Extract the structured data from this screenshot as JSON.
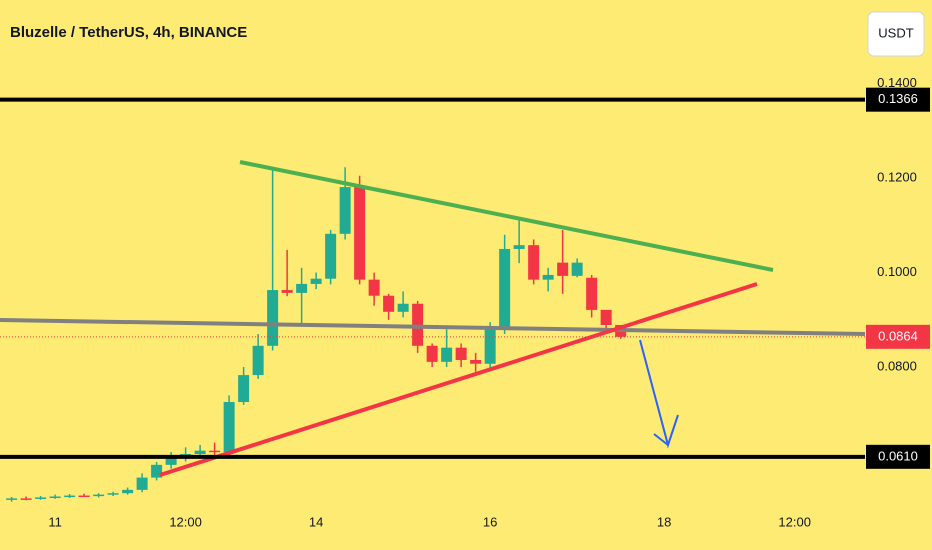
{
  "chart_data": {
    "type": "candlestick",
    "title": "Bluzelle / TetherUS, 4h, BINANCE",
    "currency": "USDT",
    "x": [
      -12,
      -8,
      -4,
      0,
      4,
      8,
      12,
      16,
      20,
      24,
      28,
      32,
      36,
      40,
      44,
      48,
      52,
      56,
      60,
      64,
      68,
      72,
      76,
      80,
      84,
      88,
      92,
      96,
      100,
      104,
      108,
      112,
      116,
      120,
      124,
      128,
      132,
      136,
      140,
      144,
      148,
      152,
      156
    ],
    "open": [
      0.052,
      0.0522,
      0.0521,
      0.0524,
      0.0526,
      0.0528,
      0.0527,
      0.053,
      0.0533,
      0.054,
      0.0566,
      0.0593,
      0.0608,
      0.0616,
      0.0623,
      0.062,
      0.0726,
      0.0783,
      0.0845,
      0.0963,
      0.0957,
      0.0976,
      0.0987,
      0.1082,
      0.1181,
      0.0985,
      0.0951,
      0.0917,
      0.0934,
      0.0845,
      0.0811,
      0.0841,
      0.0815,
      0.0807,
      0.0883,
      0.105,
      0.1058,
      0.0985,
      0.1021,
      0.0993,
      0.0989,
      0.0921,
      0.0889
    ],
    "high": [
      0.0525,
      0.0526,
      0.0527,
      0.053,
      0.0531,
      0.0532,
      0.0533,
      0.0536,
      0.0545,
      0.0575,
      0.0599,
      0.062,
      0.063,
      0.0635,
      0.064,
      0.074,
      0.08,
      0.087,
      0.1217,
      0.1048,
      0.101,
      0.1,
      0.109,
      0.1223,
      0.1205,
      0.1,
      0.0955,
      0.096,
      0.094,
      0.085,
      0.088,
      0.085,
      0.083,
      0.0895,
      0.108,
      0.1117,
      0.107,
      0.101,
      0.109,
      0.103,
      0.0995,
      0.0921,
      0.088
    ],
    "low": [
      0.0515,
      0.0518,
      0.0519,
      0.0521,
      0.0523,
      0.0525,
      0.0524,
      0.0527,
      0.053,
      0.0535,
      0.056,
      0.0585,
      0.06,
      0.0608,
      0.061,
      0.061,
      0.072,
      0.0775,
      0.0835,
      0.095,
      0.0889,
      0.0965,
      0.0975,
      0.107,
      0.0975,
      0.093,
      0.09,
      0.0905,
      0.083,
      0.08,
      0.08,
      0.08,
      0.079,
      0.0795,
      0.087,
      0.102,
      0.0975,
      0.096,
      0.0955,
      0.099,
      0.0905,
      0.088,
      0.086
    ],
    "close": [
      0.0522,
      0.0521,
      0.0524,
      0.0526,
      0.0528,
      0.0527,
      0.053,
      0.0533,
      0.054,
      0.0566,
      0.0593,
      0.0608,
      0.0616,
      0.0623,
      0.062,
      0.0726,
      0.0783,
      0.0845,
      0.0963,
      0.0957,
      0.0976,
      0.0987,
      0.1082,
      0.1181,
      0.0985,
      0.0951,
      0.0917,
      0.0934,
      0.0845,
      0.0811,
      0.0841,
      0.0815,
      0.0807,
      0.0883,
      0.105,
      0.1058,
      0.0985,
      0.0995,
      0.0993,
      0.1021,
      0.0921,
      0.0889,
      0.0864
    ],
    "up_color": "#22ab94",
    "down_color": "#f23645",
    "xlim": [
      -15.2,
      223.4
    ],
    "xticks": [
      {
        "value": 0,
        "label": "11"
      },
      {
        "value": 36,
        "label": "12:00"
      },
      {
        "value": 72,
        "label": "14"
      },
      {
        "value": 120,
        "label": "16"
      },
      {
        "value": 168,
        "label": "18"
      },
      {
        "value": 204,
        "label": "12:00"
      }
    ],
    "ylim": [
      0.0508,
      0.1577
    ],
    "yticks": [
      {
        "value": 0.08,
        "label": "0.0800"
      },
      {
        "value": 0.1,
        "label": "0.1000"
      },
      {
        "value": 0.12,
        "label": "0.1200"
      },
      {
        "value": 0.14,
        "label": "0.1400"
      }
    ],
    "levels": [
      {
        "value": 0.1366,
        "label": "0.1366"
      },
      {
        "value": 0.061,
        "label": "0.0610"
      }
    ],
    "last_price": {
      "value": 0.0864,
      "label": "0.0864"
    }
  }
}
